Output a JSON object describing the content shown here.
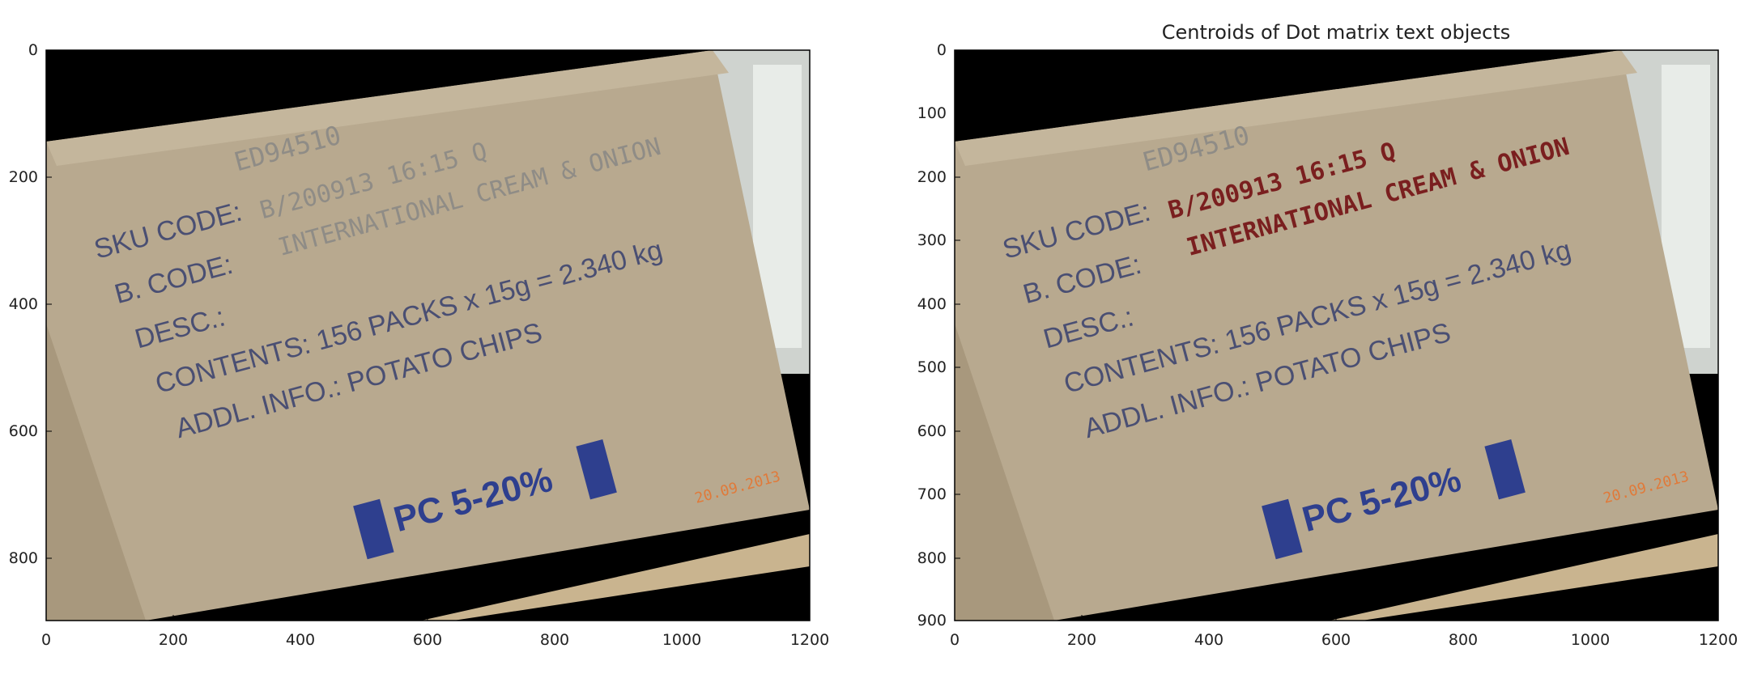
{
  "panels": [
    {
      "title": "",
      "x_ticks": [
        "0",
        "200",
        "400",
        "600",
        "800",
        "1000",
        "1200"
      ],
      "y_ticks": [
        "0",
        "200",
        "400",
        "600",
        "800"
      ],
      "box_text": {
        "top_code": "ED94510",
        "sku": "SKU CODE:",
        "bcode": "B. CODE:",
        "desc": "DESC.:",
        "contents": "CONTENTS:  156 PACKS x 15g = 2.340 kg",
        "addl": "ADDL. INFO.: POTATO CHIPS",
        "dot_line1": "B/200913 16:15 Q",
        "dot_line2": "INTERNATIONAL CREAM & ONION",
        "pc": "PC 5-20%",
        "date": "20.09.2013"
      }
    },
    {
      "title": "Centroids of Dot matrix text objects",
      "x_ticks": [
        "0",
        "200",
        "400",
        "600",
        "800",
        "1000",
        "1200"
      ],
      "y_ticks": [
        "0",
        "100",
        "200",
        "300",
        "400",
        "500",
        "600",
        "700",
        "800",
        "900"
      ],
      "box_text": {
        "top_code": "ED94510",
        "sku": "SKU CODE:",
        "bcode": "B. CODE:",
        "desc": "DESC.:",
        "contents": "CONTENTS:  156 PACKS x 15g = 2.340 kg",
        "addl": "ADDL. INFO.: POTATO CHIPS",
        "dot_line1": "B/200913 16:15 Q",
        "dot_line2": "INTERNATIONAL CREAM & ONION",
        "pc": "PC 5-20%",
        "date": "20.09.2013"
      }
    }
  ],
  "colors": {
    "cardboard": "#b5a68c",
    "box_print": "#4a4f73",
    "dot_red": "#7a1f1f",
    "pc_blue": "#2e3f8e",
    "date_orange": "#e07a3a"
  }
}
